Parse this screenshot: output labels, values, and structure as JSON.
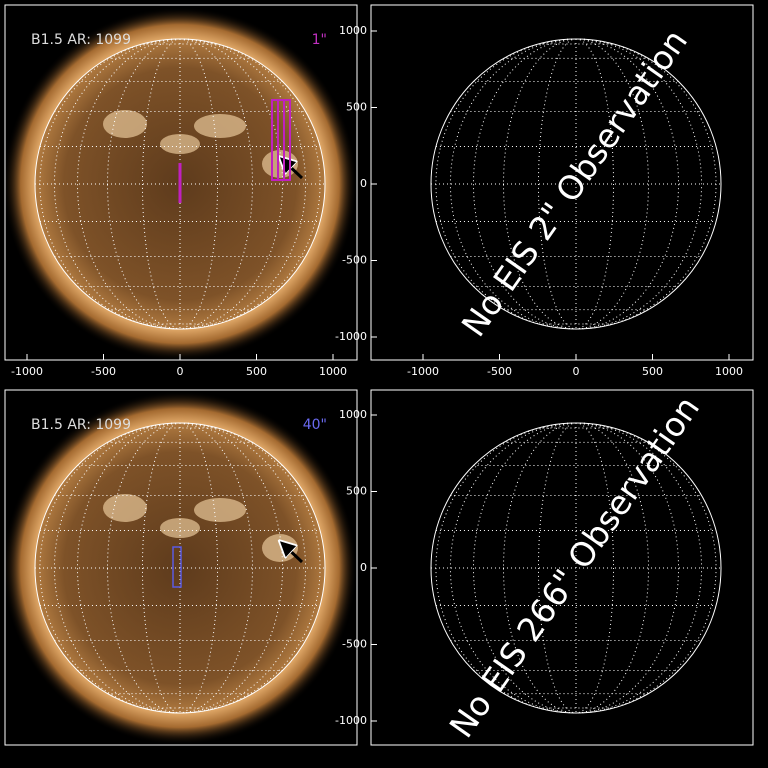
{
  "panels": [
    {
      "label": "B1.5 AR: 1099",
      "annotation": "1\"",
      "xticks": [
        -1000,
        -500,
        0,
        500,
        1000
      ]
    },
    {
      "xticks": [
        -1000,
        -500,
        0,
        500,
        1000
      ],
      "yticks": [
        -1000,
        -500,
        0,
        500,
        1000
      ],
      "message": "No EIS 2\" Observation"
    },
    {
      "label": "B1.5 AR: 1099",
      "annotation": "40\""
    },
    {
      "yticks": [
        -1000,
        -500,
        0,
        500,
        1000
      ],
      "message": "No EIS 266\" Observation"
    }
  ]
}
